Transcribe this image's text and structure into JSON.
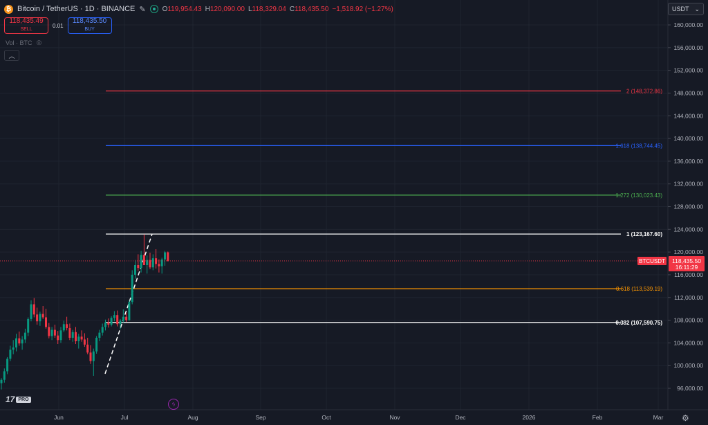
{
  "symbol": {
    "title": "Bitcoin / TetherUS · 1D · BINANCE",
    "coin_glyph": "₿",
    "ohlc": [
      {
        "k": "O",
        "v": "119,954.43"
      },
      {
        "k": "H",
        "v": "120,090.00"
      },
      {
        "k": "L",
        "v": "118,329.04"
      },
      {
        "k": "C",
        "v": "118,435.50"
      },
      {
        "k": "",
        "v": "−1,518.92 (−1.27%)"
      }
    ]
  },
  "trade": {
    "sell_price": "118,435.49",
    "sell_label": "SELL",
    "spread": "0.01",
    "buy_price": "118,435.50",
    "buy_label": "BUY"
  },
  "volume_label": "Vol · BTC",
  "currency": "USDT",
  "tv_brand": "17",
  "tv_pro": "PRO",
  "colors": {
    "up": "#089981",
    "down": "#f23645",
    "bg": "#161a25",
    "grid": "#1f2430"
  },
  "chart_data": {
    "type": "candlestick",
    "y_ticks": [
      "96,000.00",
      "100,000.00",
      "104,000.00",
      "108,000.00",
      "112,000.00",
      "116,000.00",
      "120,000.00",
      "124,000.00",
      "128,000.00",
      "132,000.00",
      "136,000.00",
      "140,000.00",
      "144,000.00",
      "148,000.00",
      "152,000.00",
      "156,000.00",
      "160,000.00"
    ],
    "x_labels": [
      "Jun",
      "Jul",
      "Aug",
      "Sep",
      "Oct",
      "Nov",
      "Dec",
      "2026",
      "Feb",
      "Mar"
    ],
    "last_price": {
      "symbol": "BTCUSDT",
      "price": "118,435.50",
      "countdown": "16:11:29",
      "value": 118435.5
    },
    "fib_levels": [
      {
        "label": "2 (148,372.86)",
        "value": 148372.86,
        "color": "#f23645"
      },
      {
        "label": "1.618 (138,744.45)",
        "value": 138744.45,
        "color": "#2962ff"
      },
      {
        "label": "1.272 (130,023.43)",
        "value": 130023.43,
        "color": "#4caf50"
      },
      {
        "label": "1 (123,167.60)",
        "value": 123167.6,
        "color": "#ffffff"
      },
      {
        "label": "0.618 (113,539.19)",
        "value": 113539.19,
        "color": "#ff9800"
      },
      {
        "label": "0.382 (107,590.75)",
        "value": 107590.75,
        "color": "#ffffff"
      }
    ],
    "candles": [
      [
        96900,
        97800,
        95800,
        97500
      ],
      [
        97500,
        99500,
        97000,
        99000
      ],
      [
        99000,
        101500,
        98500,
        101200
      ],
      [
        101200,
        103500,
        100800,
        102800
      ],
      [
        102800,
        104500,
        102000,
        103200
      ],
      [
        103200,
        105600,
        102500,
        104800
      ],
      [
        104800,
        106000,
        103500,
        103900
      ],
      [
        103900,
        105200,
        102800,
        104600
      ],
      [
        104600,
        106500,
        104000,
        105800
      ],
      [
        105800,
        108500,
        105200,
        108200
      ],
      [
        108200,
        111500,
        107800,
        110800
      ],
      [
        110800,
        111900,
        108500,
        109000
      ],
      [
        109000,
        110200,
        107200,
        107800
      ],
      [
        107800,
        109500,
        107000,
        109100
      ],
      [
        109100,
        110500,
        108200,
        108500
      ],
      [
        108500,
        110000,
        106500,
        106800
      ],
      [
        106800,
        107500,
        104800,
        105200
      ],
      [
        105200,
        106800,
        104500,
        106300
      ],
      [
        106300,
        107200,
        104900,
        105300
      ],
      [
        105300,
        106100,
        103800,
        104500
      ],
      [
        104500,
        106800,
        104000,
        106200
      ],
      [
        106200,
        107900,
        105900,
        107300
      ],
      [
        107300,
        108600,
        106200,
        106600
      ],
      [
        106600,
        107400,
        104500,
        104900
      ],
      [
        104900,
        106300,
        104200,
        105900
      ],
      [
        105900,
        106800,
        103800,
        104300
      ],
      [
        104300,
        105600,
        103000,
        105100
      ],
      [
        105100,
        106200,
        104200,
        104600
      ],
      [
        104600,
        105700,
        103300,
        103700
      ],
      [
        103700,
        104900,
        102000,
        102300
      ],
      [
        102300,
        103600,
        100300,
        100800
      ],
      [
        100800,
        103000,
        98200,
        102500
      ],
      [
        102500,
        105200,
        102100,
        104900
      ],
      [
        104900,
        106300,
        104300,
        105800
      ],
      [
        105800,
        107400,
        105300,
        106800
      ],
      [
        106800,
        108100,
        106200,
        107600
      ],
      [
        107600,
        108300,
        106700,
        107200
      ],
      [
        107200,
        108700,
        106900,
        108400
      ],
      [
        108400,
        109600,
        107800,
        108900
      ],
      [
        108900,
        109700,
        106900,
        107300
      ],
      [
        107300,
        108200,
        106400,
        107900
      ],
      [
        107900,
        109900,
        107600,
        108600
      ],
      [
        108600,
        109300,
        107700,
        108000
      ],
      [
        108000,
        111500,
        107900,
        111200
      ],
      [
        111200,
        116800,
        110800,
        116000
      ],
      [
        116000,
        118600,
        115300,
        117700
      ],
      [
        117700,
        119600,
        116700,
        117200
      ],
      [
        117200,
        120200,
        116400,
        119500
      ],
      [
        119500,
        123100,
        117800,
        117700
      ],
      [
        117700,
        119400,
        116200,
        118600
      ],
      [
        118600,
        119900,
        117000,
        117300
      ],
      [
        117300,
        119600,
        116800,
        118900
      ],
      [
        118900,
        120500,
        117100,
        117900
      ],
      [
        117900,
        118700,
        116400,
        117500
      ],
      [
        117500,
        119000,
        116200,
        118700
      ],
      [
        118700,
        120200,
        117600,
        119950
      ],
      [
        119950,
        120090,
        118329,
        118435
      ]
    ]
  }
}
